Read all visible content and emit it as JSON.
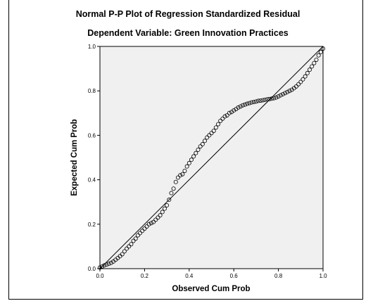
{
  "chart_data": {
    "type": "scatter",
    "title": "Normal P-P Plot of Regression Standardized Residual",
    "subtitle": "Dependent Variable: Green Innovation Practices",
    "xlabel": "Observed Cum Prob",
    "ylabel": "Expected Cum Prob",
    "xlim": [
      0.0,
      1.0
    ],
    "ylim": [
      0.0,
      1.0
    ],
    "x_ticks": [
      "0.0",
      "0.2",
      "0.4",
      "0.6",
      "0.8",
      "1.0"
    ],
    "y_ticks": [
      "0.0",
      "0.2",
      "0.4",
      "0.6",
      "0.8",
      "1.0"
    ],
    "grid": false,
    "reference_line": [
      [
        0,
        0
      ],
      [
        1,
        1
      ]
    ],
    "plot_background": "#f0f0f0",
    "marker": "open-circle",
    "points": [
      [
        0.0,
        0.005
      ],
      [
        0.01,
        0.01
      ],
      [
        0.02,
        0.015
      ],
      [
        0.03,
        0.018
      ],
      [
        0.04,
        0.022
      ],
      [
        0.05,
        0.026
      ],
      [
        0.06,
        0.032
      ],
      [
        0.07,
        0.04
      ],
      [
        0.08,
        0.048
      ],
      [
        0.09,
        0.056
      ],
      [
        0.1,
        0.065
      ],
      [
        0.11,
        0.078
      ],
      [
        0.12,
        0.09
      ],
      [
        0.13,
        0.1
      ],
      [
        0.14,
        0.11
      ],
      [
        0.15,
        0.125
      ],
      [
        0.16,
        0.135
      ],
      [
        0.17,
        0.15
      ],
      [
        0.18,
        0.16
      ],
      [
        0.19,
        0.17
      ],
      [
        0.2,
        0.18
      ],
      [
        0.21,
        0.19
      ],
      [
        0.22,
        0.2
      ],
      [
        0.23,
        0.205
      ],
      [
        0.24,
        0.21
      ],
      [
        0.25,
        0.22
      ],
      [
        0.26,
        0.23
      ],
      [
        0.27,
        0.24
      ],
      [
        0.28,
        0.255
      ],
      [
        0.29,
        0.27
      ],
      [
        0.3,
        0.285
      ],
      [
        0.31,
        0.31
      ],
      [
        0.32,
        0.34
      ],
      [
        0.33,
        0.36
      ],
      [
        0.34,
        0.39
      ],
      [
        0.35,
        0.41
      ],
      [
        0.36,
        0.42
      ],
      [
        0.37,
        0.425
      ],
      [
        0.38,
        0.44
      ],
      [
        0.39,
        0.46
      ],
      [
        0.4,
        0.475
      ],
      [
        0.41,
        0.49
      ],
      [
        0.42,
        0.505
      ],
      [
        0.43,
        0.52
      ],
      [
        0.44,
        0.535
      ],
      [
        0.45,
        0.55
      ],
      [
        0.46,
        0.56
      ],
      [
        0.47,
        0.575
      ],
      [
        0.48,
        0.59
      ],
      [
        0.49,
        0.6
      ],
      [
        0.5,
        0.61
      ],
      [
        0.51,
        0.62
      ],
      [
        0.52,
        0.635
      ],
      [
        0.53,
        0.65
      ],
      [
        0.54,
        0.665
      ],
      [
        0.55,
        0.675
      ],
      [
        0.56,
        0.685
      ],
      [
        0.57,
        0.69
      ],
      [
        0.58,
        0.7
      ],
      [
        0.59,
        0.705
      ],
      [
        0.6,
        0.712
      ],
      [
        0.61,
        0.718
      ],
      [
        0.62,
        0.725
      ],
      [
        0.63,
        0.73
      ],
      [
        0.64,
        0.735
      ],
      [
        0.65,
        0.738
      ],
      [
        0.66,
        0.742
      ],
      [
        0.67,
        0.745
      ],
      [
        0.68,
        0.748
      ],
      [
        0.69,
        0.75
      ],
      [
        0.7,
        0.752
      ],
      [
        0.71,
        0.755
      ],
      [
        0.72,
        0.756
      ],
      [
        0.73,
        0.758
      ],
      [
        0.74,
        0.76
      ],
      [
        0.75,
        0.762
      ],
      [
        0.76,
        0.763
      ],
      [
        0.77,
        0.765
      ],
      [
        0.78,
        0.767
      ],
      [
        0.79,
        0.77
      ],
      [
        0.8,
        0.775
      ],
      [
        0.81,
        0.78
      ],
      [
        0.82,
        0.785
      ],
      [
        0.83,
        0.79
      ],
      [
        0.84,
        0.795
      ],
      [
        0.85,
        0.8
      ],
      [
        0.86,
        0.805
      ],
      [
        0.87,
        0.812
      ],
      [
        0.88,
        0.82
      ],
      [
        0.89,
        0.83
      ],
      [
        0.9,
        0.84
      ],
      [
        0.91,
        0.852
      ],
      [
        0.92,
        0.865
      ],
      [
        0.93,
        0.88
      ],
      [
        0.94,
        0.895
      ],
      [
        0.95,
        0.91
      ],
      [
        0.96,
        0.925
      ],
      [
        0.97,
        0.94
      ],
      [
        0.98,
        0.96
      ],
      [
        0.99,
        0.975
      ],
      [
        1.0,
        0.99
      ]
    ]
  }
}
